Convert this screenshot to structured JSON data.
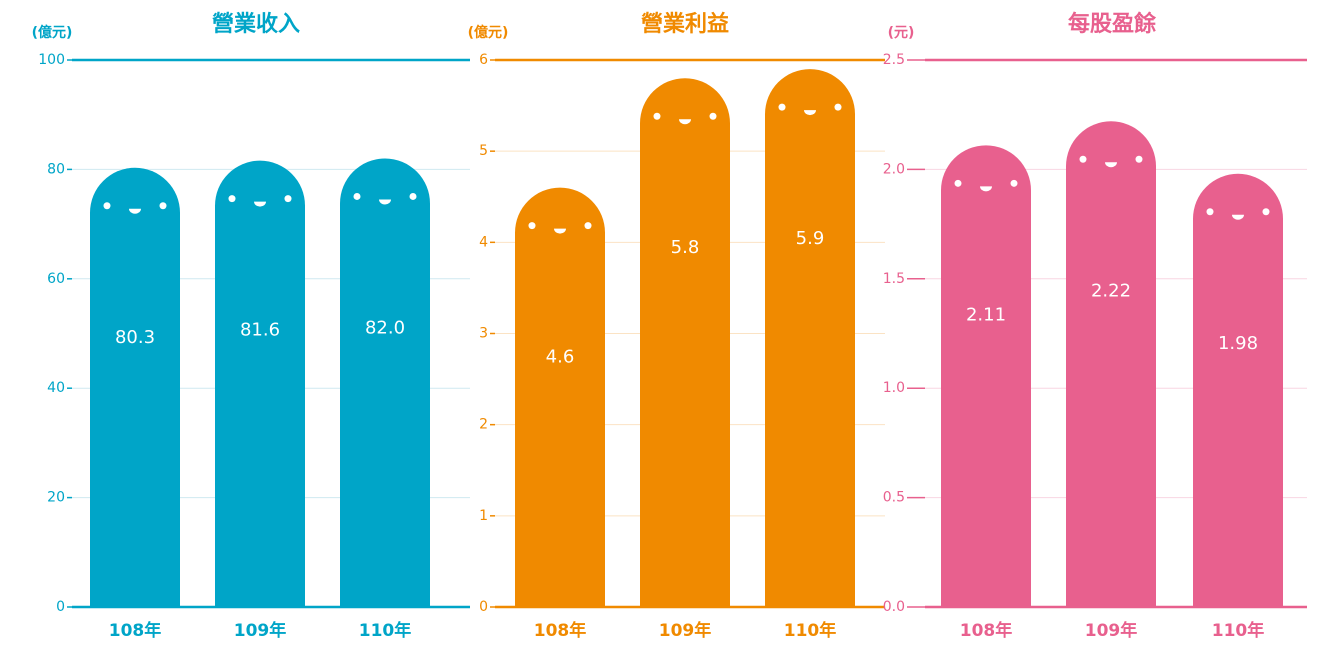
{
  "chart_data": [
    {
      "type": "bar",
      "title": "營業收入",
      "y_label": "(億元)",
      "color": "#00a5c8",
      "grid_color": "#cfe9f1",
      "categories": [
        "108年",
        "109年",
        "110年"
      ],
      "values": [
        80.3,
        81.6,
        82.0
      ],
      "value_labels": [
        "80.3",
        "81.6",
        "82.0"
      ],
      "ylim": [
        0,
        100
      ],
      "yticks": [
        0,
        20,
        40,
        60,
        80,
        100
      ],
      "grid": true
    },
    {
      "type": "bar",
      "title": "營業利益",
      "y_label": "(億元)",
      "color": "#f08a00",
      "grid_color": "#fbe3c4",
      "categories": [
        "108年",
        "109年",
        "110年"
      ],
      "values": [
        4.6,
        5.8,
        5.9
      ],
      "ylim": [
        0,
        6
      ],
      "yticks": [
        0,
        1,
        2,
        3,
        4,
        5,
        6
      ],
      "grid": true
    },
    {
      "type": "bar",
      "title": "每股盈餘",
      "y_label": "(元)",
      "color": "#e8608e",
      "grid_color": "#f8d6e2",
      "categories": [
        "108年",
        "109年",
        "110年"
      ],
      "values": [
        2.11,
        2.22,
        1.98
      ],
      "ylim": [
        0,
        2.5
      ],
      "yticks": [
        {
          "value": 0,
          "label": "0.0"
        },
        {
          "value": 0.5,
          "label": "0.5"
        },
        {
          "value": 1,
          "label": "1.0"
        },
        {
          "value": 1.5,
          "label": "1.5"
        },
        {
          "value": 2,
          "label": "2.0"
        },
        {
          "value": 2.5,
          "label": "2.5"
        }
      ],
      "grid": true
    }
  ]
}
